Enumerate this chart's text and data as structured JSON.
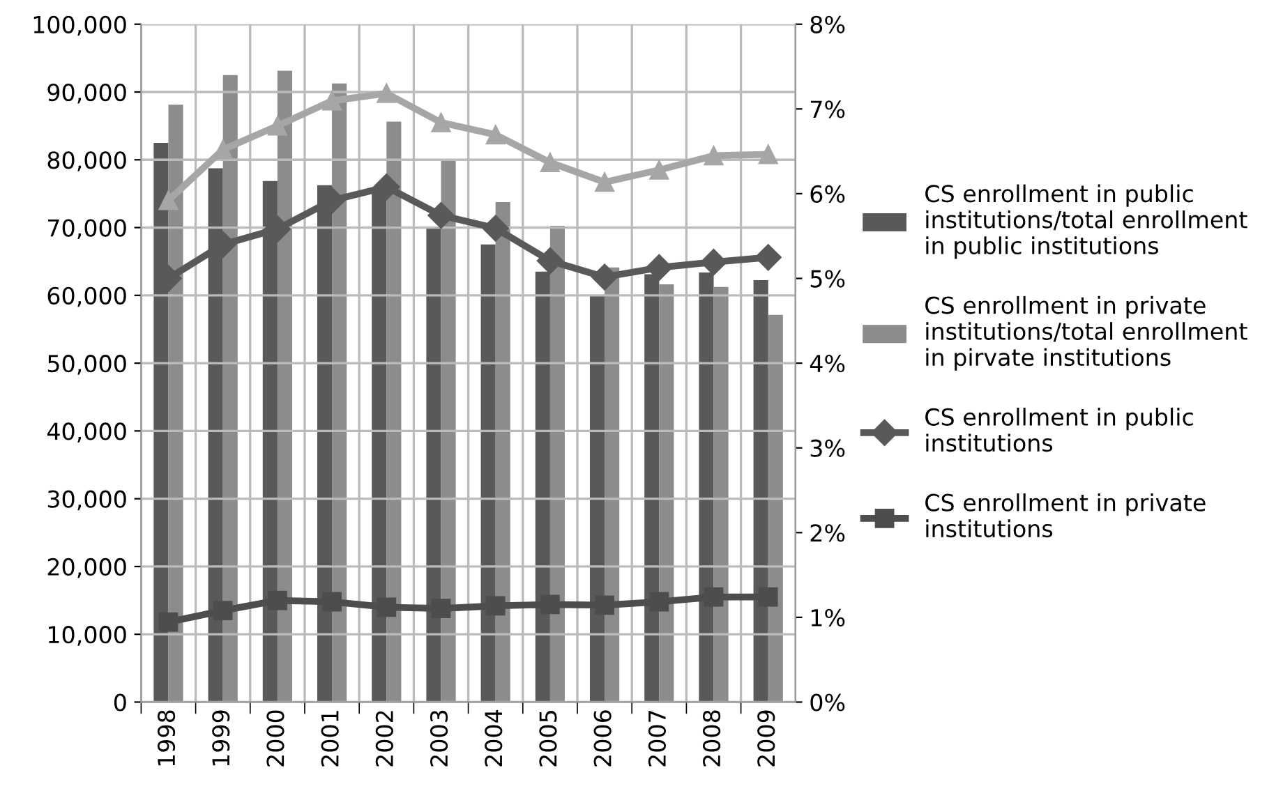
{
  "chart_data": {
    "type": "bar",
    "categories": [
      "1998",
      "1999",
      "2000",
      "2001",
      "2002",
      "2003",
      "2004",
      "2005",
      "2006",
      "2007",
      "2008",
      "2009"
    ],
    "series": [
      {
        "name": "CS enrollment in public institutions/total enrollment in public institutions",
        "color": "#595959",
        "axis": "y2",
        "values": [
          6.6,
          6.3,
          6.15,
          6.1,
          6.05,
          5.6,
          5.4,
          5.08,
          4.8,
          5.05,
          5.07,
          4.98
        ]
      },
      {
        "name": "CS enrollment in private institutions/total enrollment in pirvate institutions",
        "color": "#8c8c8c",
        "axis": "y2",
        "values": [
          7.05,
          7.4,
          7.45,
          7.3,
          6.85,
          6.4,
          5.9,
          5.62,
          5.13,
          4.93,
          4.9,
          4.57
        ]
      },
      {
        "type": "line",
        "color": "#a6a6a6",
        "marker": "triangle",
        "values": [
          74000,
          81500,
          85000,
          88700,
          89800,
          85500,
          83700,
          79600,
          76700,
          78500,
          80600,
          80800
        ]
      },
      {
        "type": "line",
        "name": "CS enrollment in public institutions",
        "color": "#595959",
        "marker": "diamond",
        "values": [
          62500,
          67500,
          69800,
          74000,
          76000,
          71800,
          69900,
          65100,
          62700,
          64100,
          64900,
          65600
        ]
      },
      {
        "type": "line",
        "name": "CS enrollment in private institutions",
        "color": "#4d4d4d",
        "marker": "square",
        "values": [
          11800,
          13500,
          15000,
          14800,
          14000,
          13800,
          14200,
          14400,
          14300,
          14800,
          15500,
          15500
        ]
      }
    ],
    "ylim": [
      0,
      100000
    ],
    "yticks": [
      {
        "value": 0,
        "label": "0"
      },
      {
        "value": 10000,
        "label": "10,000"
      },
      {
        "value": 20000,
        "label": "20,000"
      },
      {
        "value": 30000,
        "label": "30,000"
      },
      {
        "value": 40000,
        "label": "40,000"
      },
      {
        "value": 50000,
        "label": "50,000"
      },
      {
        "value": 60000,
        "label": "60,000"
      },
      {
        "value": 70000,
        "label": "70,000"
      },
      {
        "value": 80000,
        "label": "80,000"
      },
      {
        "value": 90000,
        "label": "90,000"
      },
      {
        "value": 100000,
        "label": "100,000"
      }
    ],
    "y2lim": [
      0,
      8
    ],
    "y2ticks": [
      {
        "value": 0,
        "label": "0%"
      },
      {
        "value": 1,
        "label": "1%"
      },
      {
        "value": 2,
        "label": "2%"
      },
      {
        "value": 3,
        "label": "3%"
      },
      {
        "value": 4,
        "label": "4%"
      },
      {
        "value": 5,
        "label": "5%"
      },
      {
        "value": 6,
        "label": "6%"
      },
      {
        "value": 7,
        "label": "7%"
      },
      {
        "value": 8,
        "label": "8%"
      }
    ],
    "grid": true,
    "legend": "right"
  }
}
